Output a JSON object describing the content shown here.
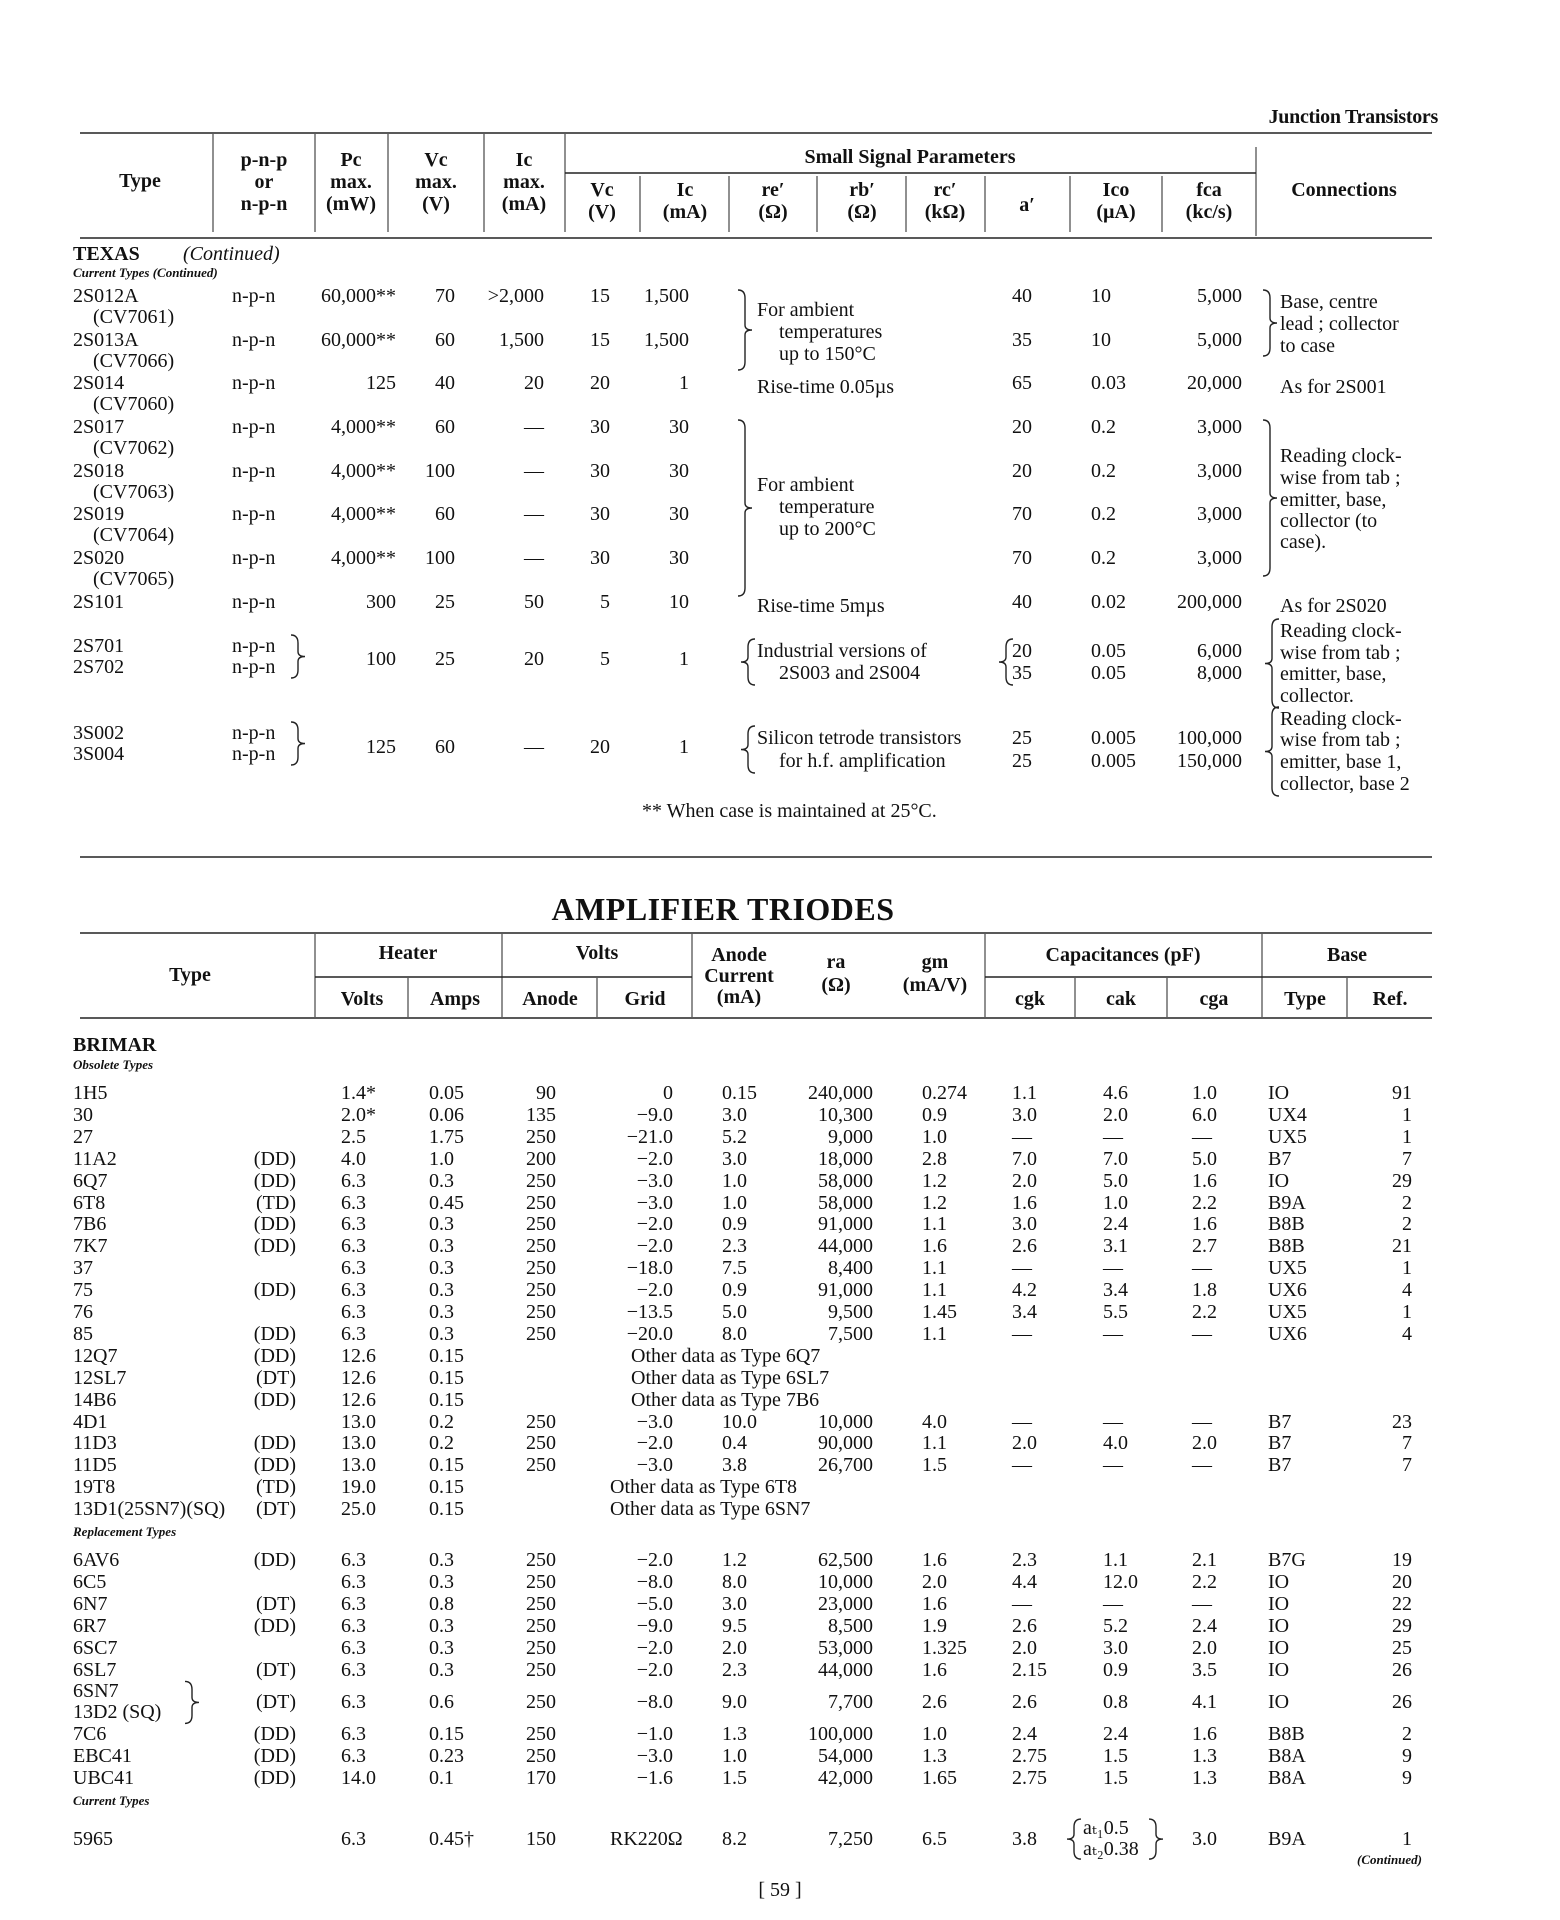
{
  "running_header": "Junction Transistors",
  "transistors": {
    "header": {
      "type": "Type",
      "polarity": [
        "p-n-p",
        "or",
        "n-p-n"
      ],
      "pc": [
        "Pc",
        "max.",
        "(mW)"
      ],
      "vc": [
        "Vc",
        "max.",
        "(V)"
      ],
      "ic": [
        "Ic",
        "max.",
        "(mA)"
      ],
      "small_signal": "Small Signal Parameters",
      "ss_vc": [
        "Vc",
        "(V)"
      ],
      "ss_ic": [
        "Ic",
        "(mA)"
      ],
      "re": [
        "re′",
        "(Ω)"
      ],
      "rb": [
        "rb′",
        "(Ω)"
      ],
      "rc": [
        "rc′",
        "(kΩ)"
      ],
      "alpha": "a′",
      "ico": [
        "Ico",
        "(µA)"
      ],
      "fca": [
        "fca",
        "(kc/s)"
      ],
      "connections": "Connections"
    },
    "maker": "TEXAS",
    "maker_note": "(Continued)",
    "group_label": "Current Types (Continued)",
    "rows": [
      {
        "type": "2S012A",
        "sub": "(CV7061)",
        "pol": "n-p-n",
        "pc": "60,000**",
        "vc": "70",
        "ic": ">2,000",
        "ss_vc": "15",
        "ss_ic": "1,500",
        "a": "40",
        "ico": "10",
        "fca": "5,000"
      },
      {
        "type": "2S013A",
        "sub": "(CV7066)",
        "pol": "n-p-n",
        "pc": "60,000**",
        "vc": "60",
        "ic": "1,500",
        "ss_vc": "15",
        "ss_ic": "1,500",
        "a": "35",
        "ico": "10",
        "fca": "5,000"
      },
      {
        "type": "2S014",
        "sub": "(CV7060)",
        "pol": "n-p-n",
        "pc": "125",
        "vc": "40",
        "ic": "20",
        "ss_vc": "20",
        "ss_ic": "1",
        "note": "Rise-time 0.05µs",
        "a": "65",
        "ico": "0.03",
        "fca": "20,000",
        "conn": "As for 2S001"
      },
      {
        "type": "2S017",
        "sub": "(CV7062)",
        "pol": "n-p-n",
        "pc": "4,000**",
        "vc": "60",
        "ic": "—",
        "ss_vc": "30",
        "ss_ic": "30",
        "a": "20",
        "ico": "0.2",
        "fca": "3,000"
      },
      {
        "type": "2S018",
        "sub": "(CV7063)",
        "pol": "n-p-n",
        "pc": "4,000**",
        "vc": "100",
        "ic": "—",
        "ss_vc": "30",
        "ss_ic": "30",
        "a": "20",
        "ico": "0.2",
        "fca": "3,000"
      },
      {
        "type": "2S019",
        "sub": "(CV7064)",
        "pol": "n-p-n",
        "pc": "4,000**",
        "vc": "60",
        "ic": "—",
        "ss_vc": "30",
        "ss_ic": "30",
        "a": "70",
        "ico": "0.2",
        "fca": "3,000"
      },
      {
        "type": "2S020",
        "sub": "(CV7065)",
        "pol": "n-p-n",
        "pc": "4,000**",
        "vc": "100",
        "ic": "—",
        "ss_vc": "30",
        "ss_ic": "30",
        "a": "70",
        "ico": "0.2",
        "fca": "3,000"
      },
      {
        "type": "2S101",
        "pol": "n-p-n",
        "pc": "300",
        "vc": "25",
        "ic": "50",
        "ss_vc": "5",
        "ss_ic": "10",
        "note": "Rise-time 5mµs",
        "a": "40",
        "ico": "0.02",
        "fca": "200,000",
        "conn": "As for 2S020"
      }
    ],
    "pairs": [
      {
        "types": [
          "2S701",
          "2S702"
        ],
        "pols": [
          "n-p-n",
          "n-p-n"
        ],
        "pc": "100",
        "vc": "25",
        "ic": "20",
        "ss_vc": "5",
        "ss_ic": "1",
        "note": [
          "Industrial versions of",
          "2S003 and 2S004"
        ],
        "a": [
          "20",
          "35"
        ],
        "ico": [
          "0.05",
          "0.05"
        ],
        "fca": [
          "6,000",
          "8,000"
        ],
        "conn": [
          "Reading clock-",
          "wise from tab ;",
          "emitter, base,",
          "collector."
        ]
      },
      {
        "types": [
          "3S002",
          "3S004"
        ],
        "pols": [
          "n-p-n",
          "n-p-n"
        ],
        "pc": "125",
        "vc": "60",
        "ic": "—",
        "ss_vc": "20",
        "ss_ic": "1",
        "note": [
          "Silicon tetrode transistors",
          "for h.f. amplification"
        ],
        "a": [
          "25",
          "25"
        ],
        "ico": [
          "0.005",
          "0.005"
        ],
        "fca": [
          "100,000",
          "150,000"
        ],
        "conn": [
          "Reading clock-",
          "wise from tab ;",
          "emitter, base 1,",
          "collector, base 2"
        ]
      }
    ],
    "group_notes": [
      {
        "note": [
          "For ambient",
          "temperatures",
          "up to 150°C"
        ],
        "conn": [
          "Base, centre",
          "lead ; collector",
          "to case"
        ]
      },
      {
        "note": [
          "For ambient",
          "temperature",
          "up to 200°C"
        ],
        "conn": [
          "Reading clock-",
          "wise from tab ;",
          "emitter, base,",
          "collector (to",
          "case)."
        ]
      }
    ],
    "footnote": "** When case is maintained at 25°C."
  },
  "triodes": {
    "title": "AMPLIFIER TRIODES",
    "header": {
      "type": "Type",
      "heater": "Heater",
      "heater_volts": "Volts",
      "heater_amps": "Amps",
      "volts": "Volts",
      "anode": "Anode",
      "grid": "Grid",
      "anode_current": [
        "Anode",
        "Current",
        "(mA)"
      ],
      "ra": [
        "ra",
        "(Ω)"
      ],
      "gm": [
        "gm",
        "(mA/V)"
      ],
      "capacitances": "Capacitances (pF)",
      "cgk": "cgk",
      "cak": "cak",
      "cga": "cga",
      "base": "Base",
      "base_type": "Type",
      "base_ref": "Ref."
    },
    "maker": "BRIMAR",
    "groups": [
      {
        "label": "Obsolete Types",
        "rows": [
          {
            "type": "1H5",
            "s": "",
            "hv": "1.4*",
            "ha": "0.05",
            "an": "90",
            "gr": "0",
            "cur": "0.15",
            "ra": "240,000",
            "gm": "0.274",
            "cgk": "1.1",
            "cak": "4.6",
            "cga": "1.0",
            "base": "IO",
            "ref": "91"
          },
          {
            "type": "30",
            "s": "",
            "hv": "2.0*",
            "ha": "0.06",
            "an": "135",
            "gr": "−9.0",
            "cur": "3.0",
            "ra": "10,300",
            "gm": "0.9",
            "cgk": "3.0",
            "cak": "2.0",
            "cga": "6.0",
            "base": "UX4",
            "ref": "1"
          },
          {
            "type": "27",
            "s": "",
            "hv": "2.5",
            "ha": "1.75",
            "an": "250",
            "gr": "−21.0",
            "cur": "5.2",
            "ra": "9,000",
            "gm": "1.0",
            "cgk": "—",
            "cak": "—",
            "cga": "—",
            "base": "UX5",
            "ref": "1"
          },
          {
            "type": "11A2",
            "s": "(DD)",
            "hv": "4.0",
            "ha": "1.0",
            "an": "200",
            "gr": "−2.0",
            "cur": "3.0",
            "ra": "18,000",
            "gm": "2.8",
            "cgk": "7.0",
            "cak": "7.0",
            "cga": "5.0",
            "base": "B7",
            "ref": "7"
          },
          {
            "type": "6Q7",
            "s": "(DD)",
            "hv": "6.3",
            "ha": "0.3",
            "an": "250",
            "gr": "−3.0",
            "cur": "1.0",
            "ra": "58,000",
            "gm": "1.2",
            "cgk": "2.0",
            "cak": "5.0",
            "cga": "1.6",
            "base": "IO",
            "ref": "29"
          },
          {
            "type": "6T8",
            "s": "(TD)",
            "hv": "6.3",
            "ha": "0.45",
            "an": "250",
            "gr": "−3.0",
            "cur": "1.0",
            "ra": "58,000",
            "gm": "1.2",
            "cgk": "1.6",
            "cak": "1.0",
            "cga": "2.2",
            "base": "B9A",
            "ref": "2"
          },
          {
            "type": "7B6",
            "s": "(DD)",
            "hv": "6.3",
            "ha": "0.3",
            "an": "250",
            "gr": "−2.0",
            "cur": "0.9",
            "ra": "91,000",
            "gm": "1.1",
            "cgk": "3.0",
            "cak": "2.4",
            "cga": "1.6",
            "base": "B8B",
            "ref": "2"
          },
          {
            "type": "7K7",
            "s": "(DD)",
            "hv": "6.3",
            "ha": "0.3",
            "an": "250",
            "gr": "−2.0",
            "cur": "2.3",
            "ra": "44,000",
            "gm": "1.6",
            "cgk": "2.6",
            "cak": "3.1",
            "cga": "2.7",
            "base": "B8B",
            "ref": "21"
          },
          {
            "type": "37",
            "s": "",
            "hv": "6.3",
            "ha": "0.3",
            "an": "250",
            "gr": "−18.0",
            "cur": "7.5",
            "ra": "8,400",
            "gm": "1.1",
            "cgk": "—",
            "cak": "—",
            "cga": "—",
            "base": "UX5",
            "ref": "1"
          },
          {
            "type": "75",
            "s": "(DD)",
            "hv": "6.3",
            "ha": "0.3",
            "an": "250",
            "gr": "−2.0",
            "cur": "0.9",
            "ra": "91,000",
            "gm": "1.1",
            "cgk": "4.2",
            "cak": "3.4",
            "cga": "1.8",
            "base": "UX6",
            "ref": "4"
          },
          {
            "type": "76",
            "s": "",
            "hv": "6.3",
            "ha": "0.3",
            "an": "250",
            "gr": "−13.5",
            "cur": "5.0",
            "ra": "9,500",
            "gm": "1.45",
            "cgk": "3.4",
            "cak": "5.5",
            "cga": "2.2",
            "base": "UX5",
            "ref": "1"
          },
          {
            "type": "85",
            "s": "(DD)",
            "hv": "6.3",
            "ha": "0.3",
            "an": "250",
            "gr": "−20.0",
            "cur": "8.0",
            "ra": "7,500",
            "gm": "1.1",
            "cgk": "—",
            "cak": "—",
            "cga": "—",
            "base": "UX6",
            "ref": "4"
          },
          {
            "type": "12Q7",
            "s": "(DD)",
            "hv": "12.6",
            "ha": "0.15",
            "other": "Other data as Type 6Q7"
          },
          {
            "type": "12SL7",
            "s": "(DT)",
            "hv": "12.6",
            "ha": "0.15",
            "other": "Other data as Type 6SL7"
          },
          {
            "type": "14B6",
            "s": "(DD)",
            "hv": "12.6",
            "ha": "0.15",
            "other": "Other data as Type 7B6"
          },
          {
            "type": "4D1",
            "s": "",
            "hv": "13.0",
            "ha": "0.2",
            "an": "250",
            "gr": "−3.0",
            "cur": "10.0",
            "ra": "10,000",
            "gm": "4.0",
            "cgk": "—",
            "cak": "—",
            "cga": "—",
            "base": "B7",
            "ref": "23"
          },
          {
            "type": "11D3",
            "s": "(DD)",
            "hv": "13.0",
            "ha": "0.2",
            "an": "250",
            "gr": "−2.0",
            "cur": "0.4",
            "ra": "90,000",
            "gm": "1.1",
            "cgk": "2.0",
            "cak": "4.0",
            "cga": "2.0",
            "base": "B7",
            "ref": "7"
          },
          {
            "type": "11D5",
            "s": "(DD)",
            "hv": "13.0",
            "ha": "0.15",
            "an": "250",
            "gr": "−3.0",
            "cur": "3.8",
            "ra": "26,700",
            "gm": "1.5",
            "cgk": "—",
            "cak": "—",
            "cga": "—",
            "base": "B7",
            "ref": "7"
          },
          {
            "type": "19T8",
            "s": "(TD)",
            "hv": "19.0",
            "ha": "0.15",
            "other": "Other data as Type 6T8"
          },
          {
            "type": "13D1(25SN7)(SQ)",
            "s": "(DT)",
            "hv": "25.0",
            "ha": "0.15",
            "other": "Other data as Type 6SN7"
          }
        ]
      },
      {
        "label": "Replacement Types",
        "rows": [
          {
            "type": "6AV6",
            "s": "(DD)",
            "hv": "6.3",
            "ha": "0.3",
            "an": "250",
            "gr": "−2.0",
            "cur": "1.2",
            "ra": "62,500",
            "gm": "1.6",
            "cgk": "2.3",
            "cak": "1.1",
            "cga": "2.1",
            "base": "B7G",
            "ref": "19"
          },
          {
            "type": "6C5",
            "s": "",
            "hv": "6.3",
            "ha": "0.3",
            "an": "250",
            "gr": "−8.0",
            "cur": "8.0",
            "ra": "10,000",
            "gm": "2.0",
            "cgk": "4.4",
            "cak": "12.0",
            "cga": "2.2",
            "base": "IO",
            "ref": "20"
          },
          {
            "type": "6N7",
            "s": "(DT)",
            "hv": "6.3",
            "ha": "0.8",
            "an": "250",
            "gr": "−5.0",
            "cur": "3.0",
            "ra": "23,000",
            "gm": "1.6",
            "cgk": "—",
            "cak": "—",
            "cga": "—",
            "base": "IO",
            "ref": "22"
          },
          {
            "type": "6R7",
            "s": "(DD)",
            "hv": "6.3",
            "ha": "0.3",
            "an": "250",
            "gr": "−9.0",
            "cur": "9.5",
            "ra": "8,500",
            "gm": "1.9",
            "cgk": "2.6",
            "cak": "5.2",
            "cga": "2.4",
            "base": "IO",
            "ref": "29"
          },
          {
            "type": "6SC7",
            "s": "",
            "hv": "6.3",
            "ha": "0.3",
            "an": "250",
            "gr": "−2.0",
            "cur": "2.0",
            "ra": "53,000",
            "gm": "1.325",
            "cgk": "2.0",
            "cak": "3.0",
            "cga": "2.0",
            "base": "IO",
            "ref": "25"
          },
          {
            "type": "6SL7",
            "s": "(DT)",
            "hv": "6.3",
            "ha": "0.3",
            "an": "250",
            "gr": "−2.0",
            "cur": "2.3",
            "ra": "44,000",
            "gm": "1.6",
            "cgk": "2.15",
            "cak": "0.9",
            "cga": "3.5",
            "base": "IO",
            "ref": "26"
          },
          {
            "type": "6SN7",
            "type2": "13D2 (SQ)",
            "s": "(DT)",
            "hv": "6.3",
            "ha": "0.6",
            "an": "250",
            "gr": "−8.0",
            "cur": "9.0",
            "ra": "7,700",
            "gm": "2.6",
            "cgk": "2.6",
            "cak": "0.8",
            "cga": "4.1",
            "base": "IO",
            "ref": "26"
          },
          {
            "type": "7C6",
            "s": "(DD)",
            "hv": "6.3",
            "ha": "0.15",
            "an": "250",
            "gr": "−1.0",
            "cur": "1.3",
            "ra": "100,000",
            "gm": "1.0",
            "cgk": "2.4",
            "cak": "2.4",
            "cga": "1.6",
            "base": "B8B",
            "ref": "2"
          },
          {
            "type": "EBC41",
            "s": "(DD)",
            "hv": "6.3",
            "ha": "0.23",
            "an": "250",
            "gr": "−3.0",
            "cur": "1.0",
            "ra": "54,000",
            "gm": "1.3",
            "cgk": "2.75",
            "cak": "1.5",
            "cga": "1.3",
            "base": "B8A",
            "ref": "9"
          },
          {
            "type": "UBC41",
            "s": "(DD)",
            "hv": "14.0",
            "ha": "0.1",
            "an": "170",
            "gr": "−1.6",
            "cur": "1.5",
            "ra": "42,000",
            "gm": "1.65",
            "cgk": "2.75",
            "cak": "1.5",
            "cga": "1.3",
            "base": "B8A",
            "ref": "9"
          }
        ]
      },
      {
        "label": "Current Types",
        "rows": [
          {
            "type": "5965",
            "s": "",
            "hv": "6.3",
            "ha": "0.45†",
            "an": "150",
            "gr": "RK220Ω",
            "cur": "8.2",
            "ra": "7,250",
            "gm": "6.5",
            "cgk": "3.8",
            "cak2": [
              "aₜ₁0.5",
              "aₜ₂0.38"
            ],
            "cga": "3.0",
            "base": "B9A",
            "ref": "1"
          }
        ]
      }
    ],
    "continued": "(Continued)"
  },
  "page_number": "[ 59 ]"
}
